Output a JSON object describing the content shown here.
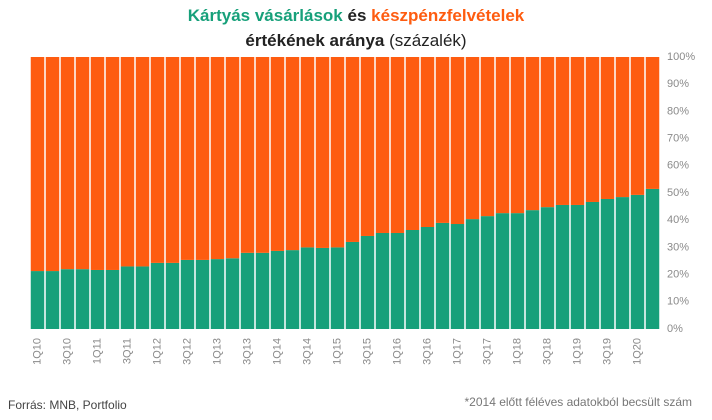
{
  "chart_data": {
    "type": "stacked_bar",
    "title_joiner": "és",
    "title_line2": [
      "értékének aránya",
      "(százalék)"
    ],
    "source": "Forrás: MNB, Portfolio",
    "note": "*2014 előtt féléves adatokból becsült szám",
    "categories": [
      "1Q10",
      null,
      "3Q10",
      null,
      "1Q11",
      null,
      "3Q11",
      null,
      "1Q12",
      null,
      "3Q12",
      null,
      "1Q13",
      null,
      "3Q13",
      null,
      "1Q14",
      null,
      "3Q14",
      null,
      "1Q15",
      null,
      "3Q15",
      null,
      "1Q16",
      null,
      "3Q16",
      null,
      "1Q17",
      null,
      "3Q17",
      null,
      "1Q18",
      null,
      "3Q18",
      null,
      "1Q19",
      null,
      "3Q19",
      null,
      "1Q20",
      null
    ],
    "series": [
      {
        "name": "Kártyás vásárlások",
        "color": "#17a07a",
        "values": [
          21.3,
          21.3,
          22,
          22,
          21.7,
          21.7,
          23,
          23,
          24.3,
          24.3,
          25.4,
          25.4,
          25.7,
          26,
          28,
          28,
          28.7,
          29,
          30,
          29.8,
          30,
          32,
          34.2,
          35.3,
          35.3,
          36.4,
          37.5,
          39,
          38.6,
          40.4,
          41.5,
          42.6,
          42.6,
          43.7,
          44.8,
          45.6,
          45.6,
          46.7,
          47.8,
          48.5,
          49.3,
          51.5
        ]
      },
      {
        "name": "készpénzfelvételek",
        "color": "#fe5c10",
        "values": [
          78.7,
          78.7,
          78,
          78,
          78.3,
          78.3,
          77,
          77,
          75.7,
          75.7,
          74.6,
          74.6,
          74.3,
          74,
          72,
          72,
          71.3,
          71,
          70,
          70.2,
          70,
          68,
          65.8,
          64.7,
          64.7,
          63.6,
          62.5,
          61,
          61.4,
          59.6,
          58.5,
          57.4,
          57.4,
          56.3,
          55.2,
          54.4,
          54.4,
          53.3,
          52.2,
          51.5,
          50.7,
          48.5
        ]
      }
    ],
    "ylim": [
      0,
      100
    ],
    "yticks": [
      {
        "value": 0,
        "label": "0%"
      },
      {
        "value": 10,
        "label": "10%"
      },
      {
        "value": 20,
        "label": "20%"
      },
      {
        "value": 30,
        "label": "30%"
      },
      {
        "value": 40,
        "label": "40%"
      },
      {
        "value": 50,
        "label": "50%"
      },
      {
        "value": 60,
        "label": "60%"
      },
      {
        "value": 70,
        "label": "70%"
      },
      {
        "value": 80,
        "label": "80%"
      },
      {
        "value": 90,
        "label": "90%"
      },
      {
        "value": 100,
        "label": "100%"
      }
    ]
  }
}
